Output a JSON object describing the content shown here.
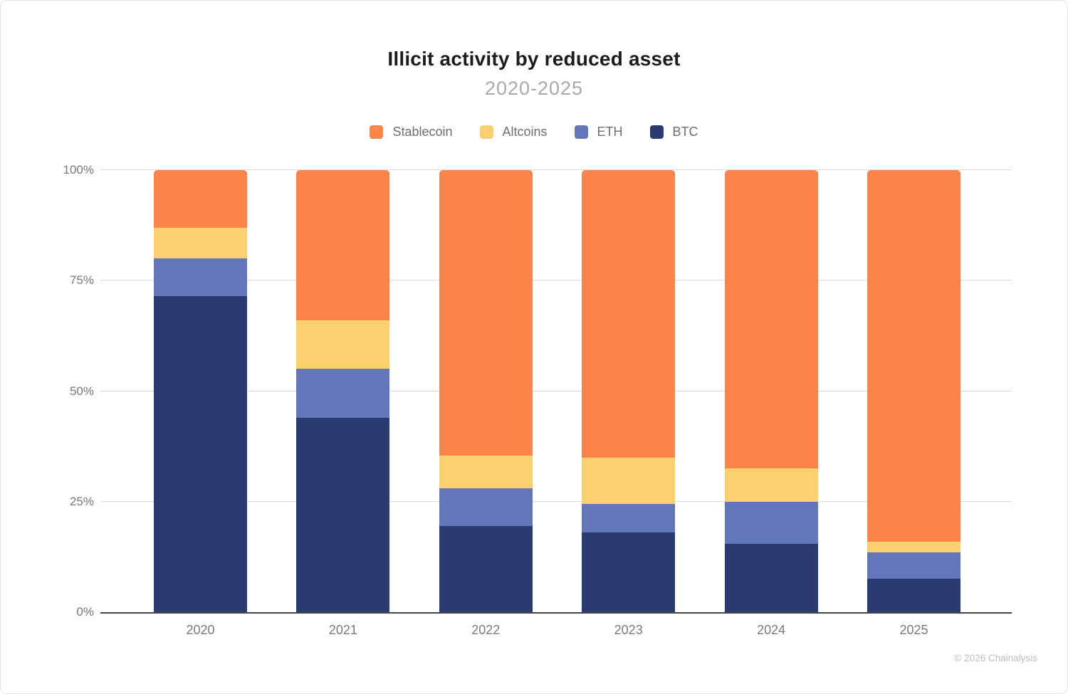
{
  "footer": {
    "copyright": "© 2026 Chainalysis"
  },
  "chart_data": {
    "type": "bar",
    "stacked": true,
    "title": "Illicit activity by reduced asset",
    "subtitle": "2020-2025",
    "categories": [
      "2020",
      "2021",
      "2022",
      "2023",
      "2024",
      "2025"
    ],
    "series": [
      {
        "name": "BTC",
        "color": "#2a3b72",
        "values": [
          71.5,
          44,
          19.5,
          18,
          15.5,
          7.5
        ]
      },
      {
        "name": "ETH",
        "color": "#6277b9",
        "values": [
          8.5,
          11,
          8.5,
          6.5,
          9.5,
          6
        ]
      },
      {
        "name": "Altcoins",
        "color": "#fbd06f",
        "values": [
          7,
          11,
          7.5,
          10.5,
          7.5,
          2.5
        ]
      },
      {
        "name": "Stablecoin",
        "color": "#fa8449",
        "values": [
          13,
          34,
          64.5,
          65,
          67.5,
          84
        ]
      }
    ],
    "legend_order": [
      "Stablecoin",
      "Altcoins",
      "ETH",
      "BTC"
    ],
    "legend_position": "top",
    "xlabel": "",
    "ylabel": "",
    "ylim": [
      0,
      100
    ],
    "yticks": [
      "0%",
      "25%",
      "50%",
      "75%",
      "100%"
    ],
    "grid": true,
    "axis_color": "#454545",
    "gridline_color": "#dadada"
  }
}
